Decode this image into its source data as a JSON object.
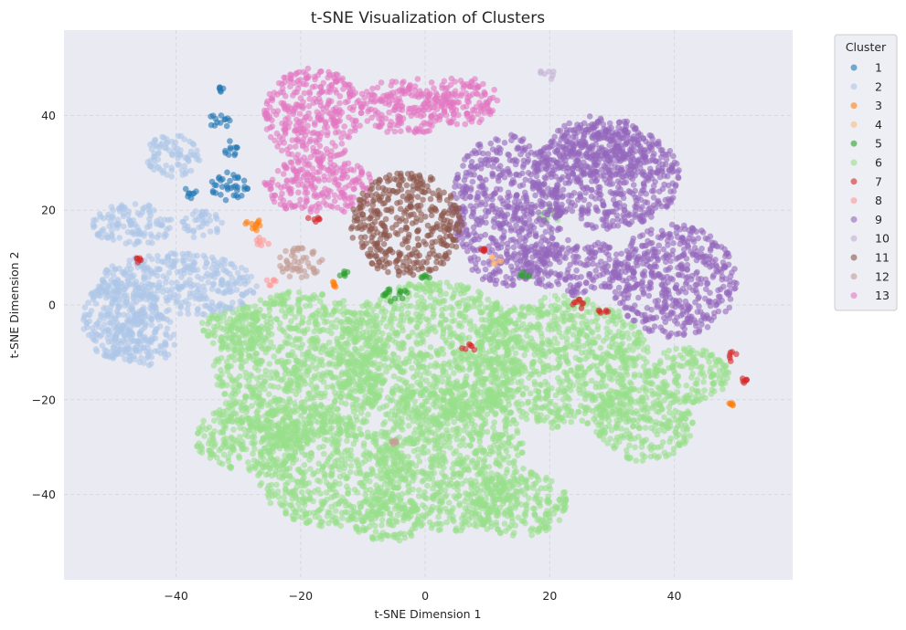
{
  "chart_data": {
    "type": "scatter",
    "title": "t-SNE Visualization of Clusters",
    "xlabel": "t-SNE Dimension 1",
    "ylabel": "t-SNE Dimension 2",
    "xlim": [
      -58,
      59
    ],
    "ylim": [
      -58,
      58
    ],
    "xticks": [
      -40,
      -20,
      0,
      20,
      40
    ],
    "yticks": [
      -40,
      -20,
      0,
      20,
      40
    ],
    "xtick_labels": [
      "−40",
      "−20",
      "0",
      "20",
      "40"
    ],
    "ytick_labels": [
      "−40",
      "−20",
      "0",
      "20",
      "40"
    ],
    "grid": true,
    "legend": {
      "title": "Cluster",
      "position": "outside-right"
    },
    "background": "#eaeaf2",
    "series": [
      {
        "name": "1",
        "color": "#1f77b4",
        "blobs": [
          [
            -33,
            39,
            2.2,
            1.5
          ],
          [
            -31.5,
            33,
            1.5,
            1.8
          ],
          [
            -31.5,
            25,
            3.0,
            3.0
          ],
          [
            -38,
            23.5,
            1.6,
            1.2
          ],
          [
            -33,
            45.5,
            0.6,
            0.8
          ]
        ]
      },
      {
        "name": "2",
        "color": "#aec7e8",
        "blobs": [
          [
            -40.5,
            31.5,
            4.5,
            4.5
          ],
          [
            -47,
            17,
            6.5,
            4.5
          ],
          [
            -36,
            17,
            3.5,
            3.0
          ],
          [
            -40,
            4,
            13,
            7
          ],
          [
            -49,
            -3,
            6,
            9
          ],
          [
            -45,
            -7,
            5,
            6
          ]
        ]
      },
      {
        "name": "3",
        "color": "#ff7f0e",
        "blobs": [
          [
            -28,
            17,
            1.8,
            1.5
          ],
          [
            -14.5,
            4.3,
            0.7,
            0.7
          ],
          [
            49,
            -21,
            0.5,
            0.5
          ]
        ]
      },
      {
        "name": "4",
        "color": "#ffbb78",
        "blobs": [
          [
            11.5,
            9.5,
            1.0,
            1.0
          ]
        ]
      },
      {
        "name": "5",
        "color": "#2ca02c",
        "blobs": [
          [
            -5,
            2,
            2.5,
            1.5
          ],
          [
            -13,
            6.5,
            0.8,
            0.6
          ],
          [
            16,
            6.5,
            1.0,
            0.8
          ],
          [
            0,
            6,
            0.8,
            0.6
          ]
        ]
      },
      {
        "name": "6",
        "color": "#98df8a",
        "blobs": [
          [
            -20,
            -13,
            14,
            16
          ],
          [
            1,
            -10,
            15,
            15
          ],
          [
            22,
            -12,
            14,
            14
          ],
          [
            -28,
            -28,
            9,
            7
          ],
          [
            4,
            -32,
            12,
            16
          ],
          [
            -15,
            -35,
            12,
            12
          ],
          [
            35,
            -25,
            8,
            8
          ],
          [
            -6,
            -45,
            6,
            5
          ],
          [
            15,
            -42,
            8,
            7
          ],
          [
            42,
            -15,
            7,
            6
          ],
          [
            -30,
            -5,
            6,
            5
          ],
          [
            20,
            19,
            1.8,
            2
          ]
        ]
      },
      {
        "name": "7",
        "color": "#d62728",
        "blobs": [
          [
            24,
            0,
            1.5,
            1.4
          ],
          [
            7,
            -9,
            1.3,
            0.8
          ],
          [
            49.5,
            -11,
            1.3,
            1.2
          ],
          [
            51,
            -16,
            0.7,
            0.7
          ],
          [
            -18,
            18,
            1.2,
            0.7
          ],
          [
            -46,
            9.5,
            0.4,
            0.6
          ],
          [
            28.5,
            -1.5,
            1.0,
            0.7
          ],
          [
            9.5,
            11.5,
            0.6,
            0.5
          ]
        ]
      },
      {
        "name": "8",
        "color": "#ff9896",
        "blobs": [
          [
            -26,
            13,
            1.2,
            1.5
          ],
          [
            -25,
            5,
            1.0,
            1.0
          ]
        ]
      },
      {
        "name": "9",
        "color": "#9467bd",
        "blobs": [
          [
            13,
            20,
            9,
            16
          ],
          [
            29,
            27,
            12,
            11
          ],
          [
            40,
            5,
            10,
            12
          ],
          [
            24,
            8,
            8,
            6
          ],
          [
            28,
            33,
            8,
            7
          ]
        ]
      },
      {
        "name": "10",
        "color": "#c5b0d5",
        "blobs": [
          [
            19.5,
            48.5,
            1.8,
            1.0
          ]
        ]
      },
      {
        "name": "11",
        "color": "#8c564b",
        "blobs": [
          [
            -3,
            17,
            9,
            11
          ]
        ]
      },
      {
        "name": "12",
        "color": "#c49c94",
        "blobs": [
          [
            -20,
            9,
            3.5,
            3.5
          ],
          [
            -5,
            -29,
            0.5,
            0.5
          ]
        ]
      },
      {
        "name": "13",
        "color": "#e377c2",
        "blobs": [
          [
            -18,
            40,
            8,
            10
          ],
          [
            -17,
            25,
            9,
            6
          ],
          [
            -3,
            42,
            8,
            6
          ],
          [
            6,
            43,
            6,
            5
          ]
        ]
      }
    ]
  }
}
